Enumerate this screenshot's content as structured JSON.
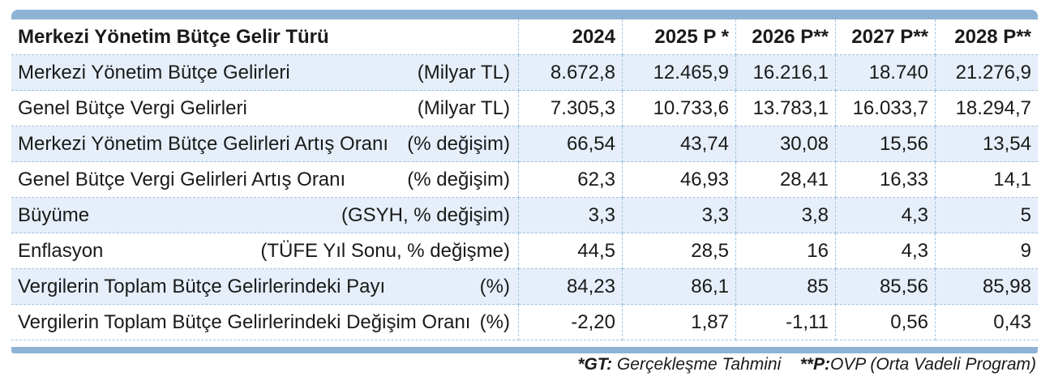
{
  "chart_data": {
    "type": "table",
    "header": {
      "label": "Merkezi Yönetim Bütçe Gelir Türü",
      "columns": [
        "2024",
        "2025 P *",
        "2026 P**",
        "2027 P**",
        "2028 P**"
      ]
    },
    "rows": [
      {
        "label": "Merkezi Yönetim Bütçe Gelirleri",
        "unit": "(Milyar TL)",
        "values": [
          "8.672,8",
          "12.465,9",
          "16.216,1",
          "18.740",
          "21.276,9"
        ]
      },
      {
        "label": "Genel Bütçe Vergi Gelirleri",
        "unit": "(Milyar TL)",
        "values": [
          "7.305,3",
          "10.733,6",
          "13.783,1",
          "16.033,7",
          "18.294,7"
        ]
      },
      {
        "label": "Merkezi Yönetim Bütçe  Gelirleri Artış Oranı",
        "unit": "(% değişim)",
        "values": [
          "66,54",
          "43,74",
          "30,08",
          "15,56",
          "13,54"
        ]
      },
      {
        "label": "Genel Bütçe Vergi Gelirleri Artış Oranı",
        "unit": "(% değişim)",
        "values": [
          "62,3",
          "46,93",
          "28,41",
          "16,33",
          "14,1"
        ]
      },
      {
        "label": "Büyüme",
        "unit": "(GSYH, % değişim)",
        "values": [
          "3,3",
          "3,3",
          "3,8",
          "4,3",
          "5"
        ]
      },
      {
        "label": "Enflasyon",
        "unit": "(TÜFE Yıl Sonu, % değişme)",
        "values": [
          "44,5",
          "28,5",
          "16",
          "4,3",
          "9"
        ]
      },
      {
        "label": "Vergilerin Toplam Bütçe Gelirlerindeki Payı",
        "unit": "(%)",
        "values": [
          "84,23",
          "86,1",
          "85",
          "85,56",
          "85,98"
        ]
      },
      {
        "label": "Vergilerin Toplam Bütçe Gelirlerindeki Değişim Oranı",
        "unit": "(%)",
        "values": [
          "-2,20",
          "1,87",
          "-1,11",
          "0,56",
          "0,43"
        ]
      }
    ],
    "footnote": {
      "gt_key": "*GT:",
      "gt_text": " Gerçekleşme Tahmini",
      "p_key": "**P:",
      "p_text": "OVP (Orta Vadeli Program)"
    },
    "colors": {
      "band": "#8fb3d4",
      "row_shade": "#e6eff9",
      "grid": "#9ec3e0"
    }
  }
}
